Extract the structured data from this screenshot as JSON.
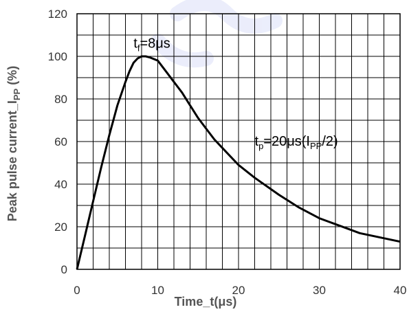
{
  "chart_data": {
    "type": "line",
    "xlabel": "Time_t(μs)",
    "ylabel": {
      "main": "Peak pulse current_I",
      "sub": "PP",
      "tail": " (%)"
    },
    "xlim": [
      0,
      40
    ],
    "ylim": [
      0,
      120
    ],
    "x_ticks": [
      "0",
      "10",
      "20",
      "30",
      "40"
    ],
    "y_ticks": [
      "0",
      "20",
      "40",
      "60",
      "80",
      "100",
      "120"
    ],
    "grid": true,
    "series": [
      {
        "x": [
          0,
          1,
          2,
          3,
          4,
          5,
          6,
          6.5,
          7,
          7.5,
          8,
          8.5,
          9,
          10,
          11,
          12,
          13,
          14,
          15,
          16,
          17,
          18,
          20,
          22,
          25,
          27.5,
          30,
          35,
          40
        ],
        "values": [
          0,
          16,
          32,
          48,
          63,
          77,
          88,
          93,
          97,
          99,
          100,
          100,
          99.5,
          98,
          93,
          88,
          83,
          77,
          71,
          66,
          61,
          57,
          49,
          43,
          35,
          29,
          24,
          17,
          13
        ],
        "color": "#000000"
      }
    ],
    "annotations": [
      {
        "x": 7,
        "y": 104,
        "main": "t",
        "sub": "f",
        "tail": "=8μs"
      },
      {
        "x": 22,
        "y": 58,
        "main": "t",
        "sub": "p",
        "tail": "=20μs(I",
        "sub2": "PP",
        "tail2": "/2)"
      }
    ]
  }
}
